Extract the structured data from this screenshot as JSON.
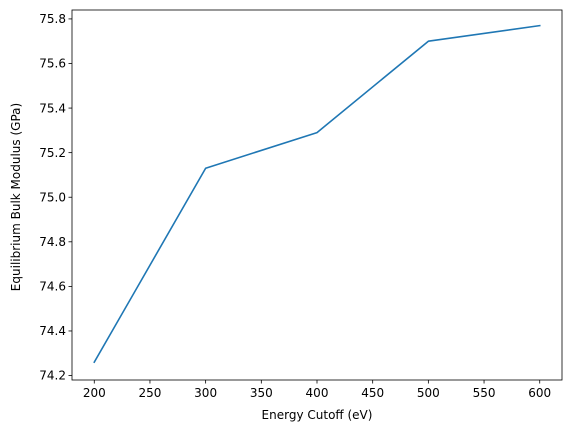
{
  "chart_data": {
    "type": "line",
    "xlabel": "Energy Cutoff (eV)",
    "ylabel": "Equilibrium Bulk Modulus (GPa)",
    "xlim": [
      180,
      620
    ],
    "ylim": [
      74.18,
      75.84
    ],
    "xticks": [
      200,
      250,
      300,
      350,
      400,
      450,
      500,
      550,
      600
    ],
    "xtick_labels": [
      "200",
      "250",
      "300",
      "350",
      "400",
      "450",
      "500",
      "550",
      "600"
    ],
    "yticks": [
      74.2,
      74.4,
      74.6,
      74.8,
      75.0,
      75.2,
      75.4,
      75.6,
      75.8
    ],
    "ytick_labels": [
      "74.2",
      "74.4",
      "74.6",
      "74.8",
      "75.0",
      "75.2",
      "75.4",
      "75.6",
      "75.8"
    ],
    "grid": false,
    "series": [
      {
        "color": "#1f77b4",
        "x": [
          200,
          300,
          400,
          500,
          600
        ],
        "y": [
          74.26,
          75.13,
          75.29,
          75.7,
          75.77
        ]
      }
    ]
  }
}
